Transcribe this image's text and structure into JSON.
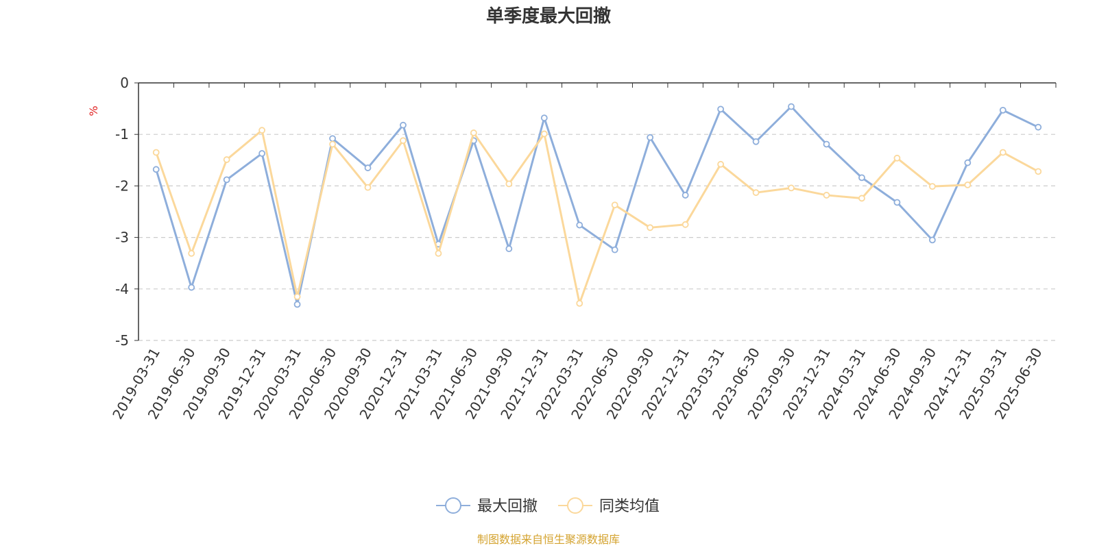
{
  "chart_data": {
    "type": "line",
    "title": "单季度最大回撤",
    "ylabel": "%",
    "xlabel": "",
    "ylim": [
      -5,
      0
    ],
    "yticks": [
      0,
      -1,
      -2,
      -3,
      -4,
      -5
    ],
    "grid": "horizontal-dashed",
    "legend_position": "bottom-center",
    "categories": [
      "2019-03-31",
      "2019-06-30",
      "2019-09-30",
      "2019-12-31",
      "2020-03-31",
      "2020-06-30",
      "2020-09-30",
      "2020-12-31",
      "2021-03-31",
      "2021-06-30",
      "2021-09-30",
      "2021-12-31",
      "2022-03-31",
      "2022-06-30",
      "2022-09-30",
      "2022-12-31",
      "2023-03-31",
      "2023-06-30",
      "2023-09-30",
      "2023-12-31",
      "2024-03-31",
      "2024-06-30",
      "2024-09-30",
      "2024-12-31",
      "2025-03-31",
      "2025-06-30"
    ],
    "series": [
      {
        "name": "最大回撤",
        "color": "#8eaedb",
        "values": [
          -1.68,
          -3.97,
          -1.88,
          -1.37,
          -4.3,
          -1.08,
          -1.65,
          -0.82,
          -3.13,
          -1.12,
          -3.22,
          -0.68,
          -2.76,
          -3.24,
          -1.06,
          -2.18,
          -0.51,
          -1.14,
          -0.46,
          -1.19,
          -1.84,
          -2.32,
          -3.05,
          -1.55,
          -0.53,
          -0.86
        ]
      },
      {
        "name": "同类均值",
        "color": "#fbd89b",
        "values": [
          -1.35,
          -3.31,
          -1.49,
          -0.92,
          -4.15,
          -1.19,
          -2.03,
          -1.12,
          -3.31,
          -0.97,
          -1.96,
          -0.99,
          -4.28,
          -2.37,
          -2.81,
          -2.75,
          -1.58,
          -2.13,
          -2.04,
          -2.18,
          -2.24,
          -1.46,
          -2.01,
          -1.98,
          -1.35,
          -1.72
        ]
      }
    ]
  },
  "footer": {
    "source": "制图数据来自恒生聚源数据库",
    "source_color": "#d4a32f"
  },
  "colors": {
    "axis": "#333333",
    "grid": "#cccccc",
    "ylabel": "#e02020",
    "title": "#333333"
  }
}
